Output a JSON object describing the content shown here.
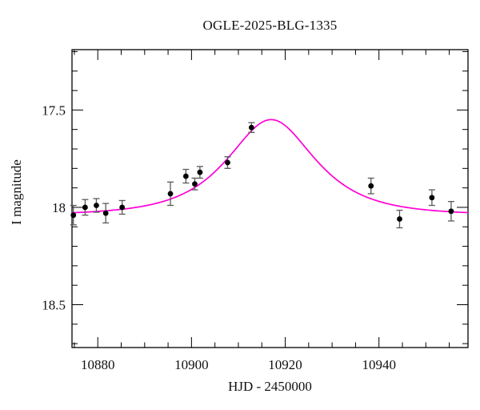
{
  "chart_data": {
    "type": "scatter",
    "title": "OGLE-2025-BLG-1335",
    "xlabel": "HJD - 2450000",
    "ylabel": "I magnitude",
    "x_range": [
      10874.5,
      10959.0
    ],
    "y_range": [
      17.19,
      18.72
    ],
    "y_axis_inverted": true,
    "x_major_ticks": [
      10880,
      10900,
      10920,
      10940
    ],
    "x_major_tick_labels": [
      "10880",
      "10900",
      "10920",
      "10940"
    ],
    "x_minor_tick_step": 5,
    "y_major_ticks": [
      17.5,
      18.0,
      18.5
    ],
    "y_major_tick_labels": [
      "17.5",
      "18",
      "18.5"
    ],
    "y_minor_tick_step": 0.1,
    "grid": false,
    "legend": null,
    "points": [
      {
        "hjd": 10874.8,
        "mag": 18.04,
        "err": 0.05
      },
      {
        "hjd": 10877.3,
        "mag": 18.0,
        "err": 0.04
      },
      {
        "hjd": 10879.7,
        "mag": 17.99,
        "err": 0.035
      },
      {
        "hjd": 10881.7,
        "mag": 18.03,
        "err": 0.05
      },
      {
        "hjd": 10885.2,
        "mag": 18.0,
        "err": 0.035
      },
      {
        "hjd": 10895.5,
        "mag": 17.93,
        "err": 0.06
      },
      {
        "hjd": 10898.8,
        "mag": 17.84,
        "err": 0.035
      },
      {
        "hjd": 10900.7,
        "mag": 17.88,
        "err": 0.03
      },
      {
        "hjd": 10901.8,
        "mag": 17.82,
        "err": 0.03
      },
      {
        "hjd": 10907.7,
        "mag": 17.77,
        "err": 0.03
      },
      {
        "hjd": 10912.8,
        "mag": 17.59,
        "err": 0.025
      },
      {
        "hjd": 10938.3,
        "mag": 17.89,
        "err": 0.04
      },
      {
        "hjd": 10944.4,
        "mag": 18.06,
        "err": 0.045
      },
      {
        "hjd": 10951.3,
        "mag": 17.95,
        "err": 0.04
      },
      {
        "hjd": 10955.4,
        "mag": 18.02,
        "err": 0.05
      }
    ],
    "model_curve": {
      "kind": "paczynski",
      "t0": 10917.0,
      "tE": 13.0,
      "u0": 0.77,
      "I0": 18.04,
      "peak_mag": 17.54
    },
    "colors": {
      "model_curve": "#ff00d4",
      "data_point": "#000000",
      "error_bar": "#5a5a5a",
      "frame": "#000000",
      "background": "#ffffff",
      "text": "#111111"
    }
  }
}
